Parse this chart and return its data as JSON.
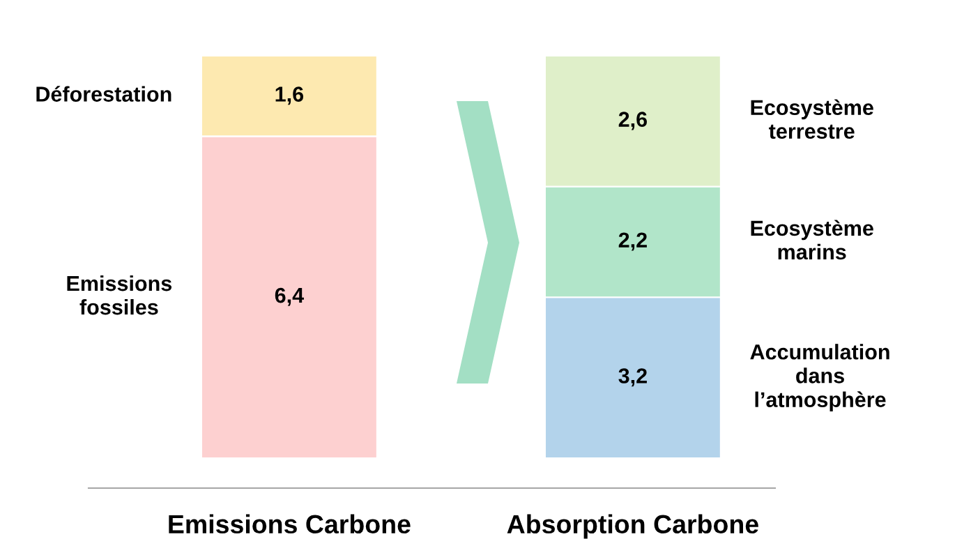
{
  "chart_data": {
    "type": "bar",
    "stacked": true,
    "tick_labels": "x",
    "categories": [
      "Emissions Carbone",
      "Absorption Carbone"
    ],
    "series": [
      {
        "name": "Emissions\nfossiles",
        "color": "#fdd0d0",
        "values": [
          6.4,
          null
        ],
        "value_labels": [
          "6,4",
          null
        ]
      },
      {
        "name": "Déforestation",
        "color": "#fde9b0",
        "values": [
          1.6,
          null
        ],
        "value_labels": [
          "1,6",
          null
        ]
      },
      {
        "name": "Accumulation\ndans\nl’atmosphère",
        "color": "#b3d3eb",
        "values": [
          null,
          3.2
        ],
        "value_labels": [
          null,
          "3,2"
        ]
      },
      {
        "name": "Ecosystème\nmarins",
        "color": "#b1e5c9",
        "values": [
          null,
          2.2
        ],
        "value_labels": [
          null,
          "2,2"
        ]
      },
      {
        "name": "Ecosystème\nterrestre",
        "color": "#dfefc9",
        "values": [
          null,
          2.6
        ],
        "value_labels": [
          null,
          "2,6"
        ]
      }
    ]
  }
}
